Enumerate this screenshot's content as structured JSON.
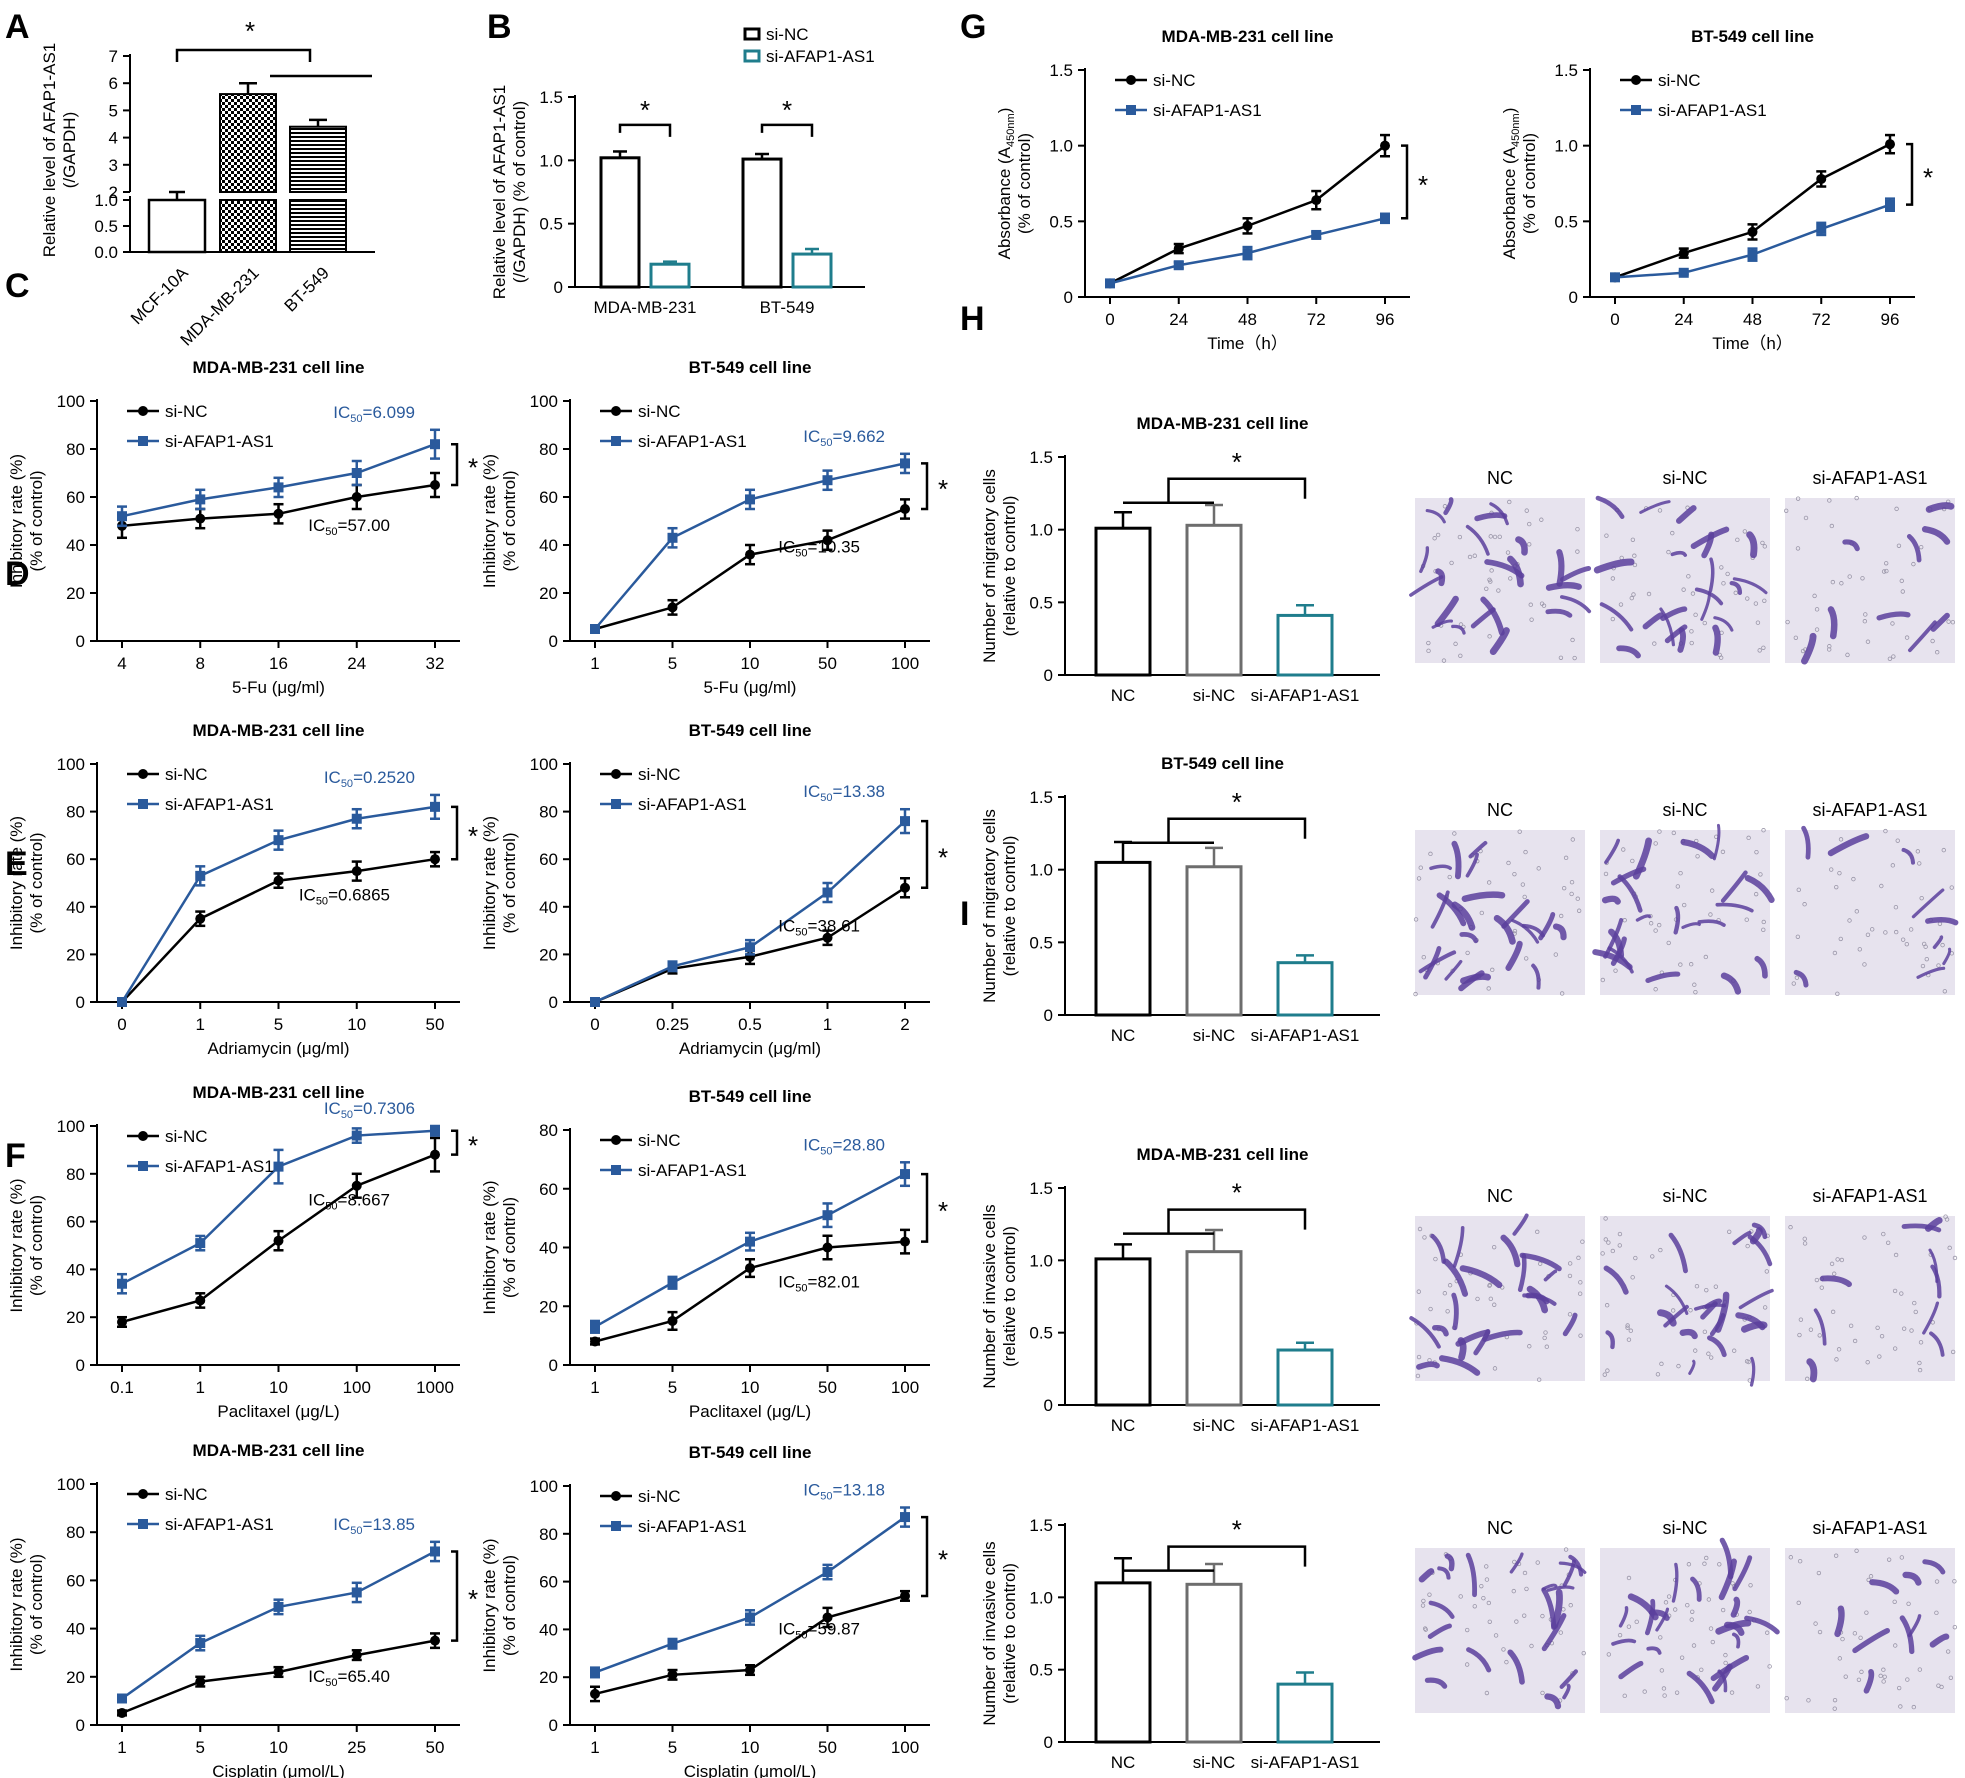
{
  "colors": {
    "black": "#000000",
    "blue": "#2a5a9c",
    "teal": "#1f7d8c",
    "gray": "#6d6d6d"
  },
  "panel_letters": [
    "A",
    "B",
    "C",
    "D",
    "E",
    "F",
    "G",
    "H",
    "I"
  ],
  "chart_data": [
    {
      "id": "A",
      "type": "bar",
      "ylabel": "Relative level of AFAP1-AS1",
      "ylabel2": "(/GAPDH)",
      "categories": [
        "MCF-10A",
        "MDA-MB-231",
        "BT-549"
      ],
      "values": [
        1.0,
        5.6,
        4.4
      ],
      "errors": [
        0.12,
        0.4,
        0.25
      ],
      "yticks_top": [
        "2",
        "3",
        "4",
        "5",
        "6",
        "7"
      ],
      "yticks_bottom": [
        "0.0",
        "0.5",
        "1.0"
      ],
      "star": "*"
    },
    {
      "id": "B",
      "type": "bar",
      "ylabel": "Relative level of AFAP1-AS1",
      "ylabel2": "(/GAPDH) (% of control)",
      "categories": [
        "MDA-MB-231",
        "BT-549"
      ],
      "series": [
        {
          "name": "si-NC",
          "values": [
            1.02,
            1.01
          ],
          "errors": [
            0.05,
            0.04
          ]
        },
        {
          "name": "si-AFAP1-AS1",
          "values": [
            0.18,
            0.26
          ],
          "errors": [
            0.02,
            0.04
          ]
        }
      ],
      "ylim": [
        0,
        1.5
      ],
      "yticks": [
        "0",
        "0.5",
        "1.0",
        "1.5"
      ],
      "star": "*"
    },
    {
      "id": "G1",
      "type": "line",
      "title": "MDA-MB-231 cell line",
      "ylabel": "Absorbance (A",
      "ysub": "450nm",
      "ylabel_end": ")",
      "ylabel2": "(% of control)",
      "xlabel": "Time（h）",
      "categories": [
        "0",
        "24",
        "48",
        "72",
        "96"
      ],
      "ylim": [
        0,
        1.5
      ],
      "yticks": [
        "0",
        "0.5",
        "1.0",
        "1.5"
      ],
      "series": [
        {
          "name": "si-NC",
          "values": [
            0.09,
            0.32,
            0.47,
            0.64,
            1.0
          ],
          "errors": [
            0.01,
            0.03,
            0.05,
            0.06,
            0.07
          ]
        },
        {
          "name": "si-AFAP1-AS1",
          "values": [
            0.09,
            0.21,
            0.29,
            0.41,
            0.52
          ],
          "errors": [
            0.01,
            0.02,
            0.04,
            0.02,
            0.03
          ]
        }
      ],
      "star": "*"
    },
    {
      "id": "G2",
      "type": "line",
      "title": "BT-549 cell line",
      "ylabel": "Absorbance (A",
      "ysub": "450nm",
      "ylabel_end": ")",
      "ylabel2": "(% of control)",
      "xlabel": "Time（h）",
      "categories": [
        "0",
        "24",
        "48",
        "72",
        "96"
      ],
      "ylim": [
        0,
        1.5
      ],
      "yticks": [
        "0",
        "0.5",
        "1.0",
        "1.5"
      ],
      "series": [
        {
          "name": "si-NC",
          "values": [
            0.13,
            0.29,
            0.43,
            0.78,
            1.01
          ],
          "errors": [
            0.01,
            0.03,
            0.05,
            0.05,
            0.06
          ]
        },
        {
          "name": "si-AFAP1-AS1",
          "values": [
            0.13,
            0.16,
            0.28,
            0.45,
            0.61
          ],
          "errors": [
            0.01,
            0.01,
            0.04,
            0.04,
            0.04
          ]
        }
      ],
      "star": "*"
    },
    {
      "id": "C1",
      "type": "line",
      "title": "MDA-MB-231 cell line",
      "ylabel": "Inhibitory rate (%)",
      "ylabel2": "(% of control)",
      "xlabel": "5-Fu (μg/ml)",
      "categories": [
        "4",
        "8",
        "16",
        "24",
        "32"
      ],
      "ylim": [
        0,
        100
      ],
      "yticks": [
        "0",
        "20",
        "40",
        "60",
        "80",
        "100"
      ],
      "series": [
        {
          "name": "si-NC",
          "values": [
            48,
            51,
            53,
            60,
            65
          ],
          "errors": [
            5,
            4,
            4,
            5,
            5
          ]
        },
        {
          "name": "si-AFAP1-AS1",
          "values": [
            52,
            59,
            64,
            70,
            82
          ],
          "errors": [
            4,
            4,
            4,
            5,
            6
          ]
        }
      ],
      "ic50_blue": "6.099",
      "ic50_black": "57.00",
      "star": "*"
    },
    {
      "id": "C2",
      "type": "line",
      "title": "BT-549 cell line",
      "ylabel": "Inhibitory rate (%)",
      "ylabel2": "(% of control)",
      "xlabel": "5-Fu (μg/ml)",
      "categories": [
        "1",
        "5",
        "10",
        "50",
        "100"
      ],
      "ylim": [
        0,
        100
      ],
      "yticks": [
        "0",
        "20",
        "40",
        "60",
        "80",
        "100"
      ],
      "series": [
        {
          "name": "si-NC",
          "values": [
            5,
            14,
            36,
            42,
            55
          ],
          "errors": [
            1,
            3,
            4,
            4,
            4
          ]
        },
        {
          "name": "si-AFAP1-AS1",
          "values": [
            5,
            43,
            59,
            67,
            74
          ],
          "errors": [
            1,
            4,
            4,
            4,
            4
          ]
        }
      ],
      "ic50_blue": "9.662",
      "ic50_black": "10.35",
      "star": "*"
    },
    {
      "id": "D1",
      "type": "line",
      "title": "MDA-MB-231 cell line",
      "ylabel": "Inhibitory rate (%)",
      "ylabel2": "(% of control)",
      "xlabel": "Adriamycin (μg/ml)",
      "categories": [
        "0",
        "1",
        "5",
        "10",
        "50"
      ],
      "ylim": [
        0,
        100
      ],
      "yticks": [
        "0",
        "20",
        "40",
        "60",
        "80",
        "100"
      ],
      "series": [
        {
          "name": "si-NC",
          "values": [
            0,
            35,
            51,
            55,
            60
          ],
          "errors": [
            0,
            3,
            3,
            4,
            3
          ]
        },
        {
          "name": "si-AFAP1-AS1",
          "values": [
            0,
            53,
            68,
            77,
            82
          ],
          "errors": [
            0,
            4,
            4,
            4,
            5
          ]
        }
      ],
      "ic50_blue": "0.2520",
      "ic50_black": "0.6865",
      "star": "*"
    },
    {
      "id": "D2",
      "type": "line",
      "title": "BT-549 cell line",
      "ylabel": "Inhibitory rate (%)",
      "ylabel2": "(% of control)",
      "xlabel": "Adriamycin (μg/ml)",
      "categories": [
        "0",
        "0.25",
        "0.5",
        "1",
        "2"
      ],
      "ylim": [
        0,
        100
      ],
      "yticks": [
        "0",
        "20",
        "40",
        "60",
        "80",
        "100"
      ],
      "series": [
        {
          "name": "si-NC",
          "values": [
            0,
            14,
            19,
            27,
            48
          ],
          "errors": [
            0,
            2,
            3,
            3,
            4
          ]
        },
        {
          "name": "si-AFAP1-AS1",
          "values": [
            0,
            15,
            23,
            46,
            76
          ],
          "errors": [
            0,
            2,
            3,
            4,
            5
          ]
        }
      ],
      "ic50_blue": "13.38",
      "ic50_black": "38.61",
      "star": "*"
    },
    {
      "id": "E1",
      "type": "line",
      "title": "MDA-MB-231 cell line",
      "ylabel": "Inhibitory rate (%)",
      "ylabel2": "(% of control)",
      "xlabel": "Paclitaxel (μg/L)",
      "categories": [
        "0.1",
        "1",
        "10",
        "100",
        "1000"
      ],
      "ylim": [
        0,
        100
      ],
      "yticks": [
        "0",
        "20",
        "40",
        "60",
        "80",
        "100"
      ],
      "series": [
        {
          "name": "si-NC",
          "values": [
            18,
            27,
            52,
            75,
            88
          ],
          "errors": [
            2,
            3,
            4,
            5,
            7
          ]
        },
        {
          "name": "si-AFAP1-AS1",
          "values": [
            34,
            51,
            83,
            96,
            98
          ],
          "errors": [
            4,
            3,
            7,
            3,
            2
          ]
        }
      ],
      "ic50_blue": "0.7306",
      "ic50_black": "8.667",
      "star": "*"
    },
    {
      "id": "E2",
      "type": "line",
      "title": "BT-549 cell line",
      "ylabel": "Inhibitory rate (%)",
      "ylabel2": "(% of control)",
      "xlabel": "Paclitaxel (μg/L)",
      "categories": [
        "1",
        "5",
        "10",
        "50",
        "100"
      ],
      "ylim": [
        0,
        80
      ],
      "yticks": [
        "0",
        "20",
        "40",
        "60",
        "80"
      ],
      "series": [
        {
          "name": "si-NC",
          "values": [
            8,
            15,
            33,
            40,
            42
          ],
          "errors": [
            1,
            3,
            3,
            4,
            4
          ]
        },
        {
          "name": "si-AFAP1-AS1",
          "values": [
            13,
            28,
            42,
            51,
            65
          ],
          "errors": [
            2,
            2,
            3,
            4,
            4
          ]
        }
      ],
      "ic50_blue": "28.80",
      "ic50_black": "82.01",
      "star": "*"
    },
    {
      "id": "F1",
      "type": "line",
      "title": "MDA-MB-231 cell line",
      "ylabel": "Inhibitory rate (%)",
      "ylabel2": "(% of control)",
      "xlabel": "Cisplatin (μmol/L)",
      "categories": [
        "1",
        "5",
        "10",
        "25",
        "50"
      ],
      "ylim": [
        0,
        100
      ],
      "yticks": [
        "0",
        "20",
        "40",
        "60",
        "80",
        "100"
      ],
      "series": [
        {
          "name": "si-NC",
          "values": [
            5,
            18,
            22,
            29,
            35
          ],
          "errors": [
            1,
            2,
            2,
            2,
            3
          ]
        },
        {
          "name": "si-AFAP1-AS1",
          "values": [
            11,
            34,
            49,
            55,
            72
          ],
          "errors": [
            1,
            3,
            3,
            4,
            4
          ]
        }
      ],
      "ic50_blue": "13.85",
      "ic50_black": "65.40",
      "star": "*"
    },
    {
      "id": "F2",
      "type": "line",
      "title": "BT-549 cell line",
      "ylabel": "Inhibitory rate (%)",
      "ylabel2": "(% of control)",
      "xlabel": "Cisplatin (μmol/L)",
      "categories": [
        "1",
        "5",
        "10",
        "50",
        "100"
      ],
      "ylim": [
        0,
        100
      ],
      "yticks": [
        "0",
        "20",
        "40",
        "60",
        "80",
        "100"
      ],
      "series": [
        {
          "name": "si-NC",
          "values": [
            13,
            21,
            23,
            45,
            54
          ],
          "errors": [
            3,
            2,
            2,
            4,
            2
          ]
        },
        {
          "name": "si-AFAP1-AS1",
          "values": [
            22,
            34,
            45,
            64,
            87
          ],
          "errors": [
            2,
            2,
            3,
            3,
            4
          ]
        }
      ],
      "ic50_blue": "13.18",
      "ic50_black": "59.87",
      "star": "*"
    },
    {
      "id": "H1",
      "type": "bar",
      "title": "MDA-MB-231 cell line",
      "ylabel": "Number of migratory cells",
      "ylabel2": "(relative to control)",
      "categories": [
        "NC",
        "si-NC",
        "si-AFAP1-AS1"
      ],
      "values": [
        1.01,
        1.03,
        0.41
      ],
      "errors": [
        0.11,
        0.14,
        0.07
      ],
      "ylim": [
        0,
        1.5
      ],
      "yticks": [
        "0",
        "0.5",
        "1.0",
        "1.5"
      ],
      "star": "*"
    },
    {
      "id": "H2",
      "type": "bar",
      "title": "BT-549 cell line",
      "ylabel": "Number of migratory cells",
      "ylabel2": "(relative to control)",
      "categories": [
        "NC",
        "si-NC",
        "si-AFAP1-AS1"
      ],
      "values": [
        1.05,
        1.02,
        0.36
      ],
      "errors": [
        0.14,
        0.13,
        0.05
      ],
      "ylim": [
        0,
        1.5
      ],
      "yticks": [
        "0",
        "0.5",
        "1.0",
        "1.5"
      ],
      "star": "*"
    },
    {
      "id": "I1",
      "type": "bar",
      "title": "MDA-MB-231 cell line",
      "ylabel": "Number of invasive cells",
      "ylabel2": "(relative to control)",
      "categories": [
        "NC",
        "si-NC",
        "si-AFAP1-AS1"
      ],
      "values": [
        1.01,
        1.06,
        0.38
      ],
      "errors": [
        0.1,
        0.15,
        0.05
      ],
      "ylim": [
        0,
        1.5
      ],
      "yticks": [
        "0",
        "0.5",
        "1.0",
        "1.5"
      ],
      "star": "*"
    },
    {
      "id": "I2",
      "type": "bar",
      "title": "",
      "ylabel": "Number of invasive cells",
      "ylabel2": "(relative to control)",
      "categories": [
        "NC",
        "si-NC",
        "si-AFAP1-AS1"
      ],
      "values": [
        1.1,
        1.09,
        0.4
      ],
      "errors": [
        0.17,
        0.14,
        0.08
      ],
      "ylim": [
        0,
        1.5
      ],
      "yticks": [
        "0",
        "0.5",
        "1.0",
        "1.5"
      ],
      "star": "*"
    }
  ],
  "micrographs": {
    "labels": [
      "NC",
      "si-NC",
      "si-AFAP1-AS1"
    ]
  }
}
